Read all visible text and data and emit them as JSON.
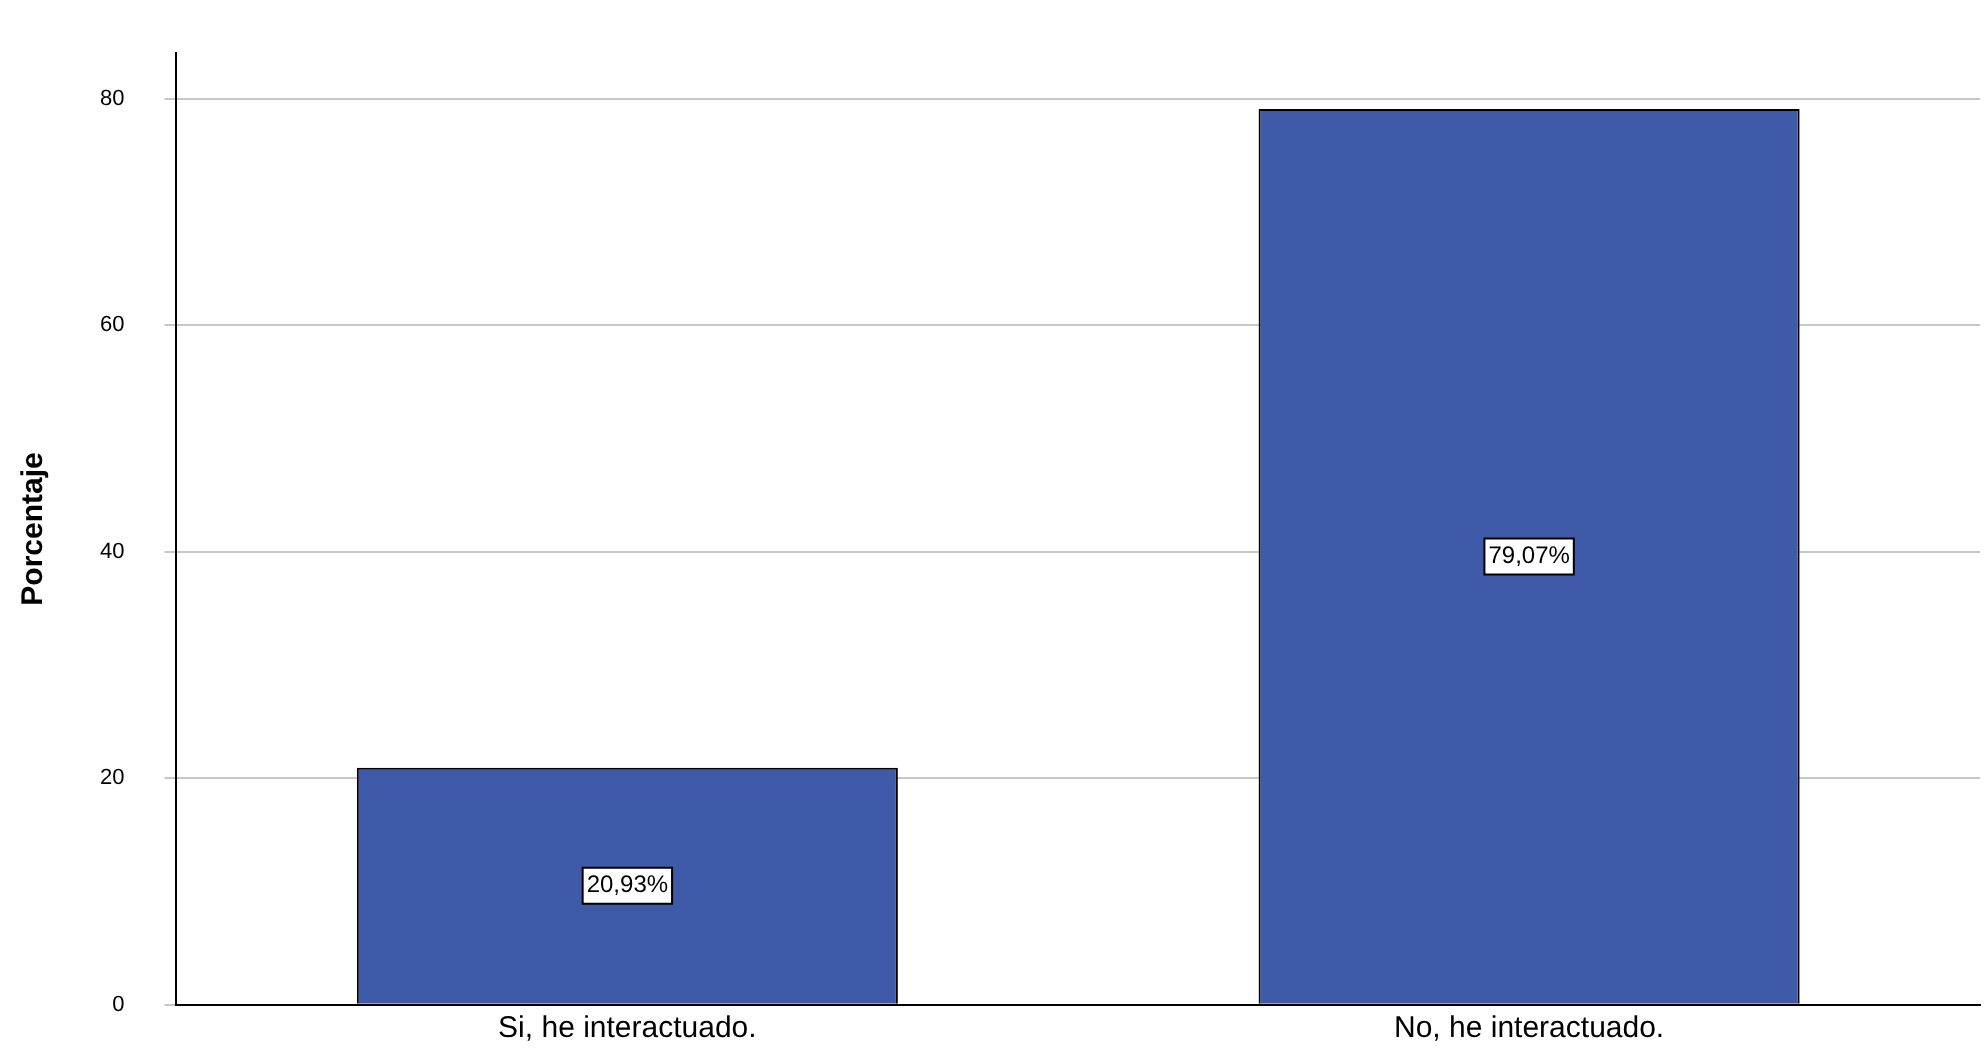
{
  "chart_data": {
    "type": "bar",
    "ylabel": "Porcentaje",
    "categories": [
      "Si, he interactuado.",
      "No, he interactuado."
    ],
    "values": [
      20.93,
      79.07
    ],
    "value_labels": [
      "20,93%",
      "79,07%"
    ],
    "color": "#3e5aa8",
    "ylim": [
      0,
      84
    ],
    "yticks": [
      0,
      20,
      40,
      60,
      80
    ],
    "grid": "y",
    "legend": false
  }
}
